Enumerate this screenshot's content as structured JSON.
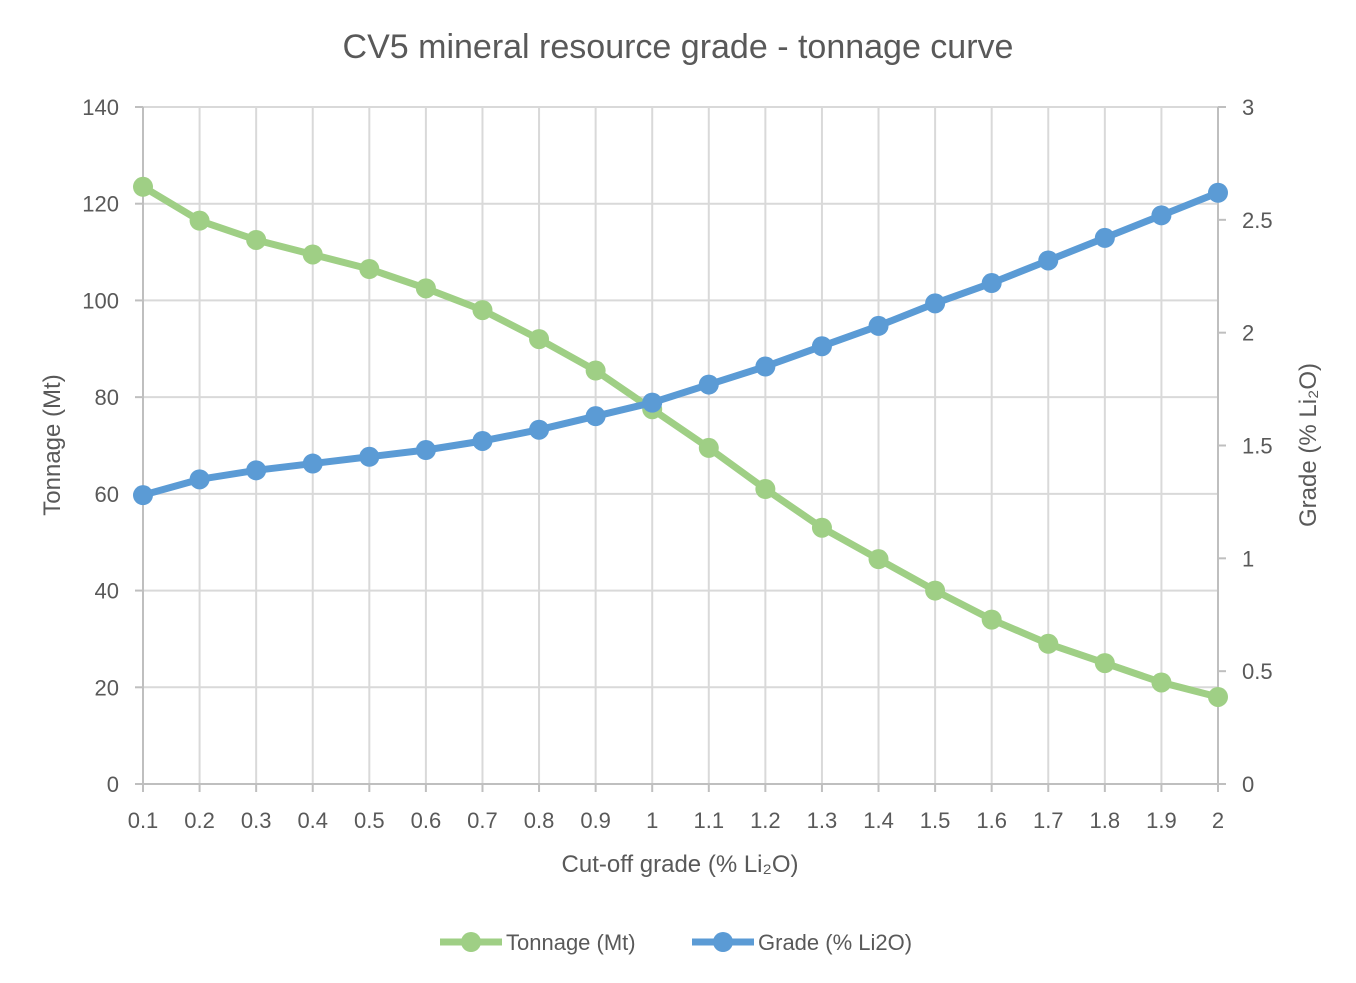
{
  "chart_data": {
    "type": "line",
    "title": "CV5 mineral resource grade - tonnage curve",
    "xlabel": "Cut-off grade (% Li₂O)",
    "ylabel": "Tonnage (Mt)",
    "y2label": "Grade (% Li₂O)",
    "categories": [
      "0.1",
      "0.2",
      "0.3",
      "0.4",
      "0.5",
      "0.6",
      "0.7",
      "0.8",
      "0.9",
      "1",
      "1.1",
      "1.2",
      "1.3",
      "1.4",
      "1.5",
      "1.6",
      "1.7",
      "1.8",
      "1.9",
      "2"
    ],
    "ylim": [
      0,
      140
    ],
    "y2lim": [
      0,
      3
    ],
    "yticks": [
      "0",
      "20",
      "40",
      "60",
      "80",
      "100",
      "120",
      "140"
    ],
    "y2ticks": [
      "0",
      "0.5",
      "1",
      "1.5",
      "2",
      "2.5",
      "3"
    ],
    "grid": true,
    "legend": "bottom",
    "series": [
      {
        "name": "Tonnage (Mt)",
        "axis": "left",
        "color": "#9fcf85",
        "values": [
          123.5,
          116.5,
          112.5,
          109.5,
          106.5,
          102.5,
          98,
          92,
          85.5,
          77.5,
          69.5,
          61,
          53,
          46.5,
          40,
          34,
          29,
          25,
          21,
          18
        ]
      },
      {
        "name": "Grade (% Li2O)",
        "axis": "right",
        "color": "#5b9bd5",
        "values": [
          1.28,
          1.35,
          1.39,
          1.42,
          1.45,
          1.48,
          1.52,
          1.57,
          1.63,
          1.69,
          1.77,
          1.85,
          1.94,
          2.03,
          2.13,
          2.22,
          2.32,
          2.42,
          2.52,
          2.62
        ]
      }
    ]
  }
}
